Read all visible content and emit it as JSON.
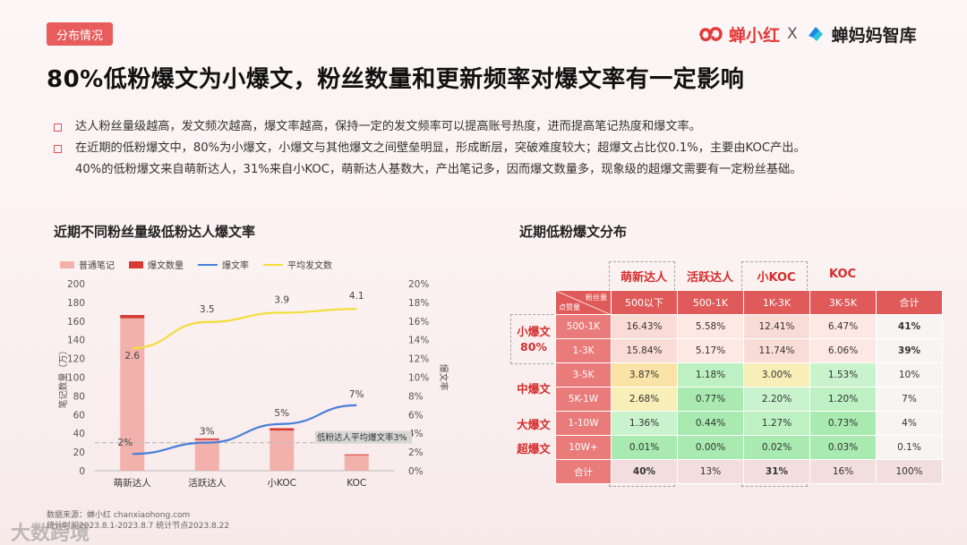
{
  "tag": "分布情况",
  "brand": {
    "left": "蝉小红",
    "x": "X",
    "right": "蝉妈妈智库"
  },
  "headline": "80%低粉爆文为小爆文，粉丝数量和更新频率对爆文率有一定影响",
  "bullets": [
    "达人粉丝量级越高，发文频次越高，爆文率越高，保持一定的发文频率可以提高账号热度，进而提高笔记热度和爆文率。",
    "在近期的低粉爆文中，80%为小爆文，小爆文与其他爆文之间壁垒明显，形成断层，突破难度较大；超爆文占比仅0.1%，主要由KOC产出。",
    "40%的低粉爆文来自萌新达人，31%来自小KOC，萌新达人基数大，产出笔记多，因而爆文数量多，现象级的超爆文需要有一定粉丝基础。"
  ],
  "left_title": "近期不同粉丝量级低粉达人爆文率",
  "right_title": "近期低粉爆文分布",
  "colors": {
    "bar": "#f3b1ac",
    "bar_top": "#d83b35",
    "rate": "#4a7fd9",
    "avg": "#f2de3a",
    "accent": "#e05a5a"
  },
  "chart_data": {
    "type": "bar",
    "title": "近期不同粉丝量级低粉达人爆文率",
    "categories": [
      "萌新达人",
      "活跃达人",
      "小KOC",
      "KOC"
    ],
    "legend": [
      "普通笔记",
      "爆文数量",
      "爆文率",
      "平均发文数"
    ],
    "ylabel_left": "笔记数量（万）",
    "ylabel_right": "爆文率",
    "ylim_left": [
      0,
      200
    ],
    "yticks_left": [
      "0",
      "20",
      "40",
      "60",
      "80",
      "100",
      "120",
      "140",
      "160",
      "180",
      "200"
    ],
    "ylim_right": [
      0,
      20
    ],
    "yticks_right": [
      "0%",
      "2%",
      "4%",
      "6%",
      "8%",
      "10%",
      "12%",
      "14%",
      "16%",
      "18%",
      "20%"
    ],
    "series": [
      {
        "name": "普通笔记",
        "type": "bar",
        "values": [
          163,
          33,
          43,
          16.5
        ]
      },
      {
        "name": "爆文数量",
        "type": "bar",
        "values": [
          3.5,
          1.5,
          2.5,
          1.0
        ]
      },
      {
        "name": "爆文率",
        "type": "line",
        "axis": "right",
        "values": [
          1.8,
          3.0,
          5.0,
          7.0
        ],
        "labels": [
          "2%",
          "3%",
          "5%",
          "7%"
        ]
      },
      {
        "name": "平均发文数",
        "type": "line",
        "axis": "right",
        "values": [
          13.1,
          15.9,
          16.9,
          17.3
        ],
        "labels": [
          "2.6",
          "3.5",
          "3.9",
          "4.1"
        ]
      }
    ],
    "reference_line": {
      "label": "低粉达人平均爆文率3%",
      "value": 3.0,
      "axis": "right"
    }
  },
  "table": {
    "corner_top": "粉丝量",
    "corner_bottom": "点赞量",
    "col_groups": [
      "萌新达人",
      "活跃达人",
      "小KOC",
      "KOC"
    ],
    "col_headers": [
      "500以下",
      "500-1K",
      "1K-3K",
      "3K-5K",
      "合计"
    ],
    "row_groups": [
      "小爆文80%",
      "中爆文",
      "大爆文",
      "超爆文"
    ],
    "rows": [
      {
        "label": "500-1K",
        "cells": [
          "16.43%",
          "5.58%",
          "12.41%",
          "6.47%",
          "41%"
        ]
      },
      {
        "label": "1-3K",
        "cells": [
          "15.84%",
          "5.17%",
          "11.74%",
          "6.06%",
          "39%"
        ]
      },
      {
        "label": "3-5K",
        "cells": [
          "3.87%",
          "1.18%",
          "3.00%",
          "1.53%",
          "10%"
        ]
      },
      {
        "label": "5K-1W",
        "cells": [
          "2.68%",
          "0.77%",
          "2.20%",
          "1.20%",
          "7%"
        ]
      },
      {
        "label": "1-10W",
        "cells": [
          "1.36%",
          "0.44%",
          "1.27%",
          "0.73%",
          "4%"
        ]
      },
      {
        "label": "10W+",
        "cells": [
          "0.01%",
          "0.00%",
          "0.02%",
          "0.03%",
          "0.1%"
        ]
      },
      {
        "label": "合计",
        "cells": [
          "40%",
          "13%",
          "31%",
          "16%",
          "100%"
        ]
      }
    ]
  },
  "source": {
    "line1": "数据来源：蝉小红 chanxiaohong.com",
    "line2": "统计时间2023.8.1-2023.8.7 统计节点2023.8.22"
  },
  "watermark": "大数跨境"
}
